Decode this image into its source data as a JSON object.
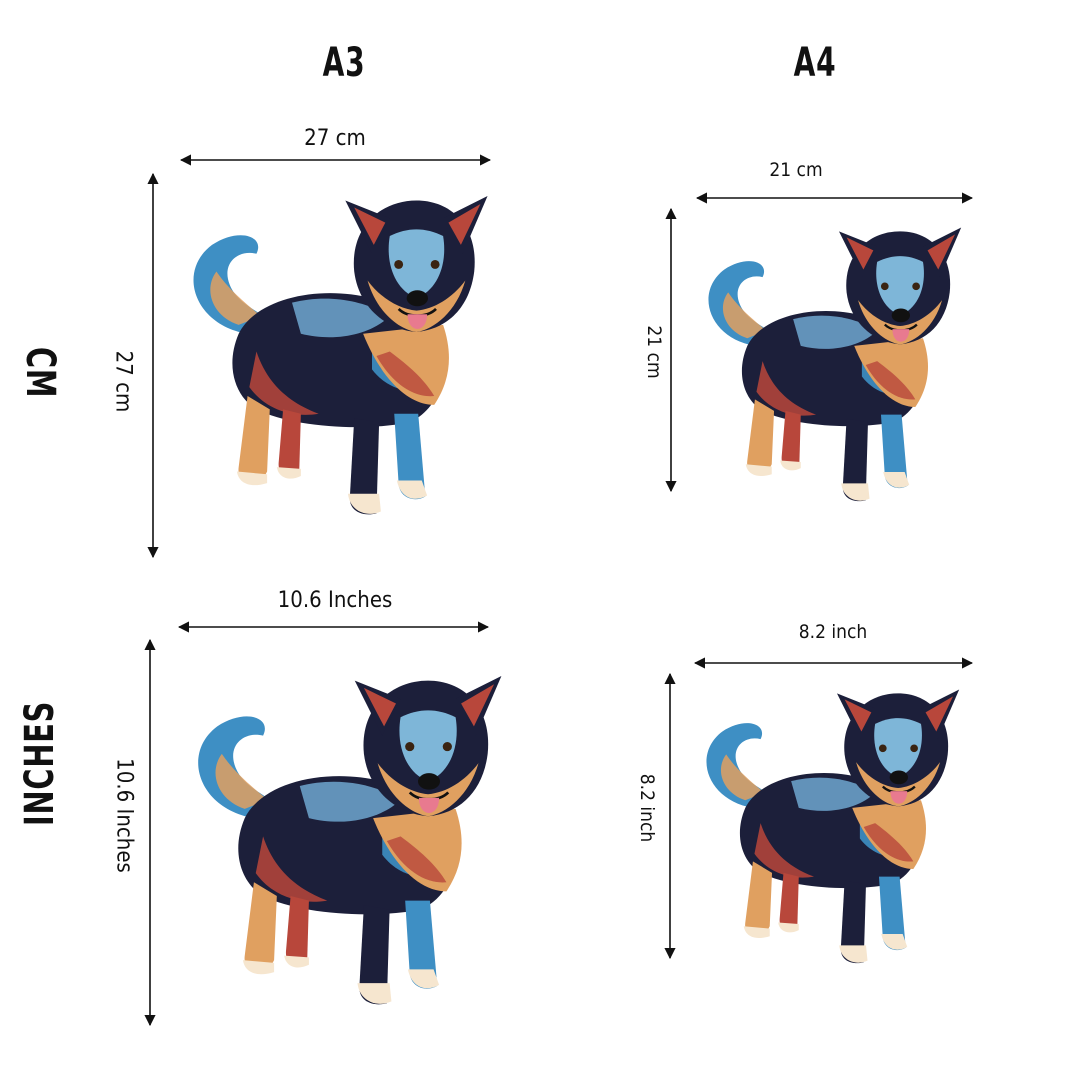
{
  "columns": {
    "a3": "A3",
    "a4": "A4"
  },
  "rows": {
    "cm": "CM",
    "inches": "INCHES"
  },
  "dimensions": {
    "a3_cm_width": "27 cm",
    "a3_cm_height": "27 cm",
    "a4_cm_width": "21 cm",
    "a4_cm_height": "21 cm",
    "a3_in_width": "10.6  Inches",
    "a3_in_height": "10.6 Inches",
    "a4_in_width": "8.2 inch",
    "a4_in_height": "8.2 inch"
  },
  "colors": {
    "dark": "#1c1f3a",
    "blue": "#3e8fc4",
    "tan": "#e0a060",
    "red": "#b8473b",
    "cream": "#f6e6cf",
    "tongue": "#e87a8f"
  }
}
